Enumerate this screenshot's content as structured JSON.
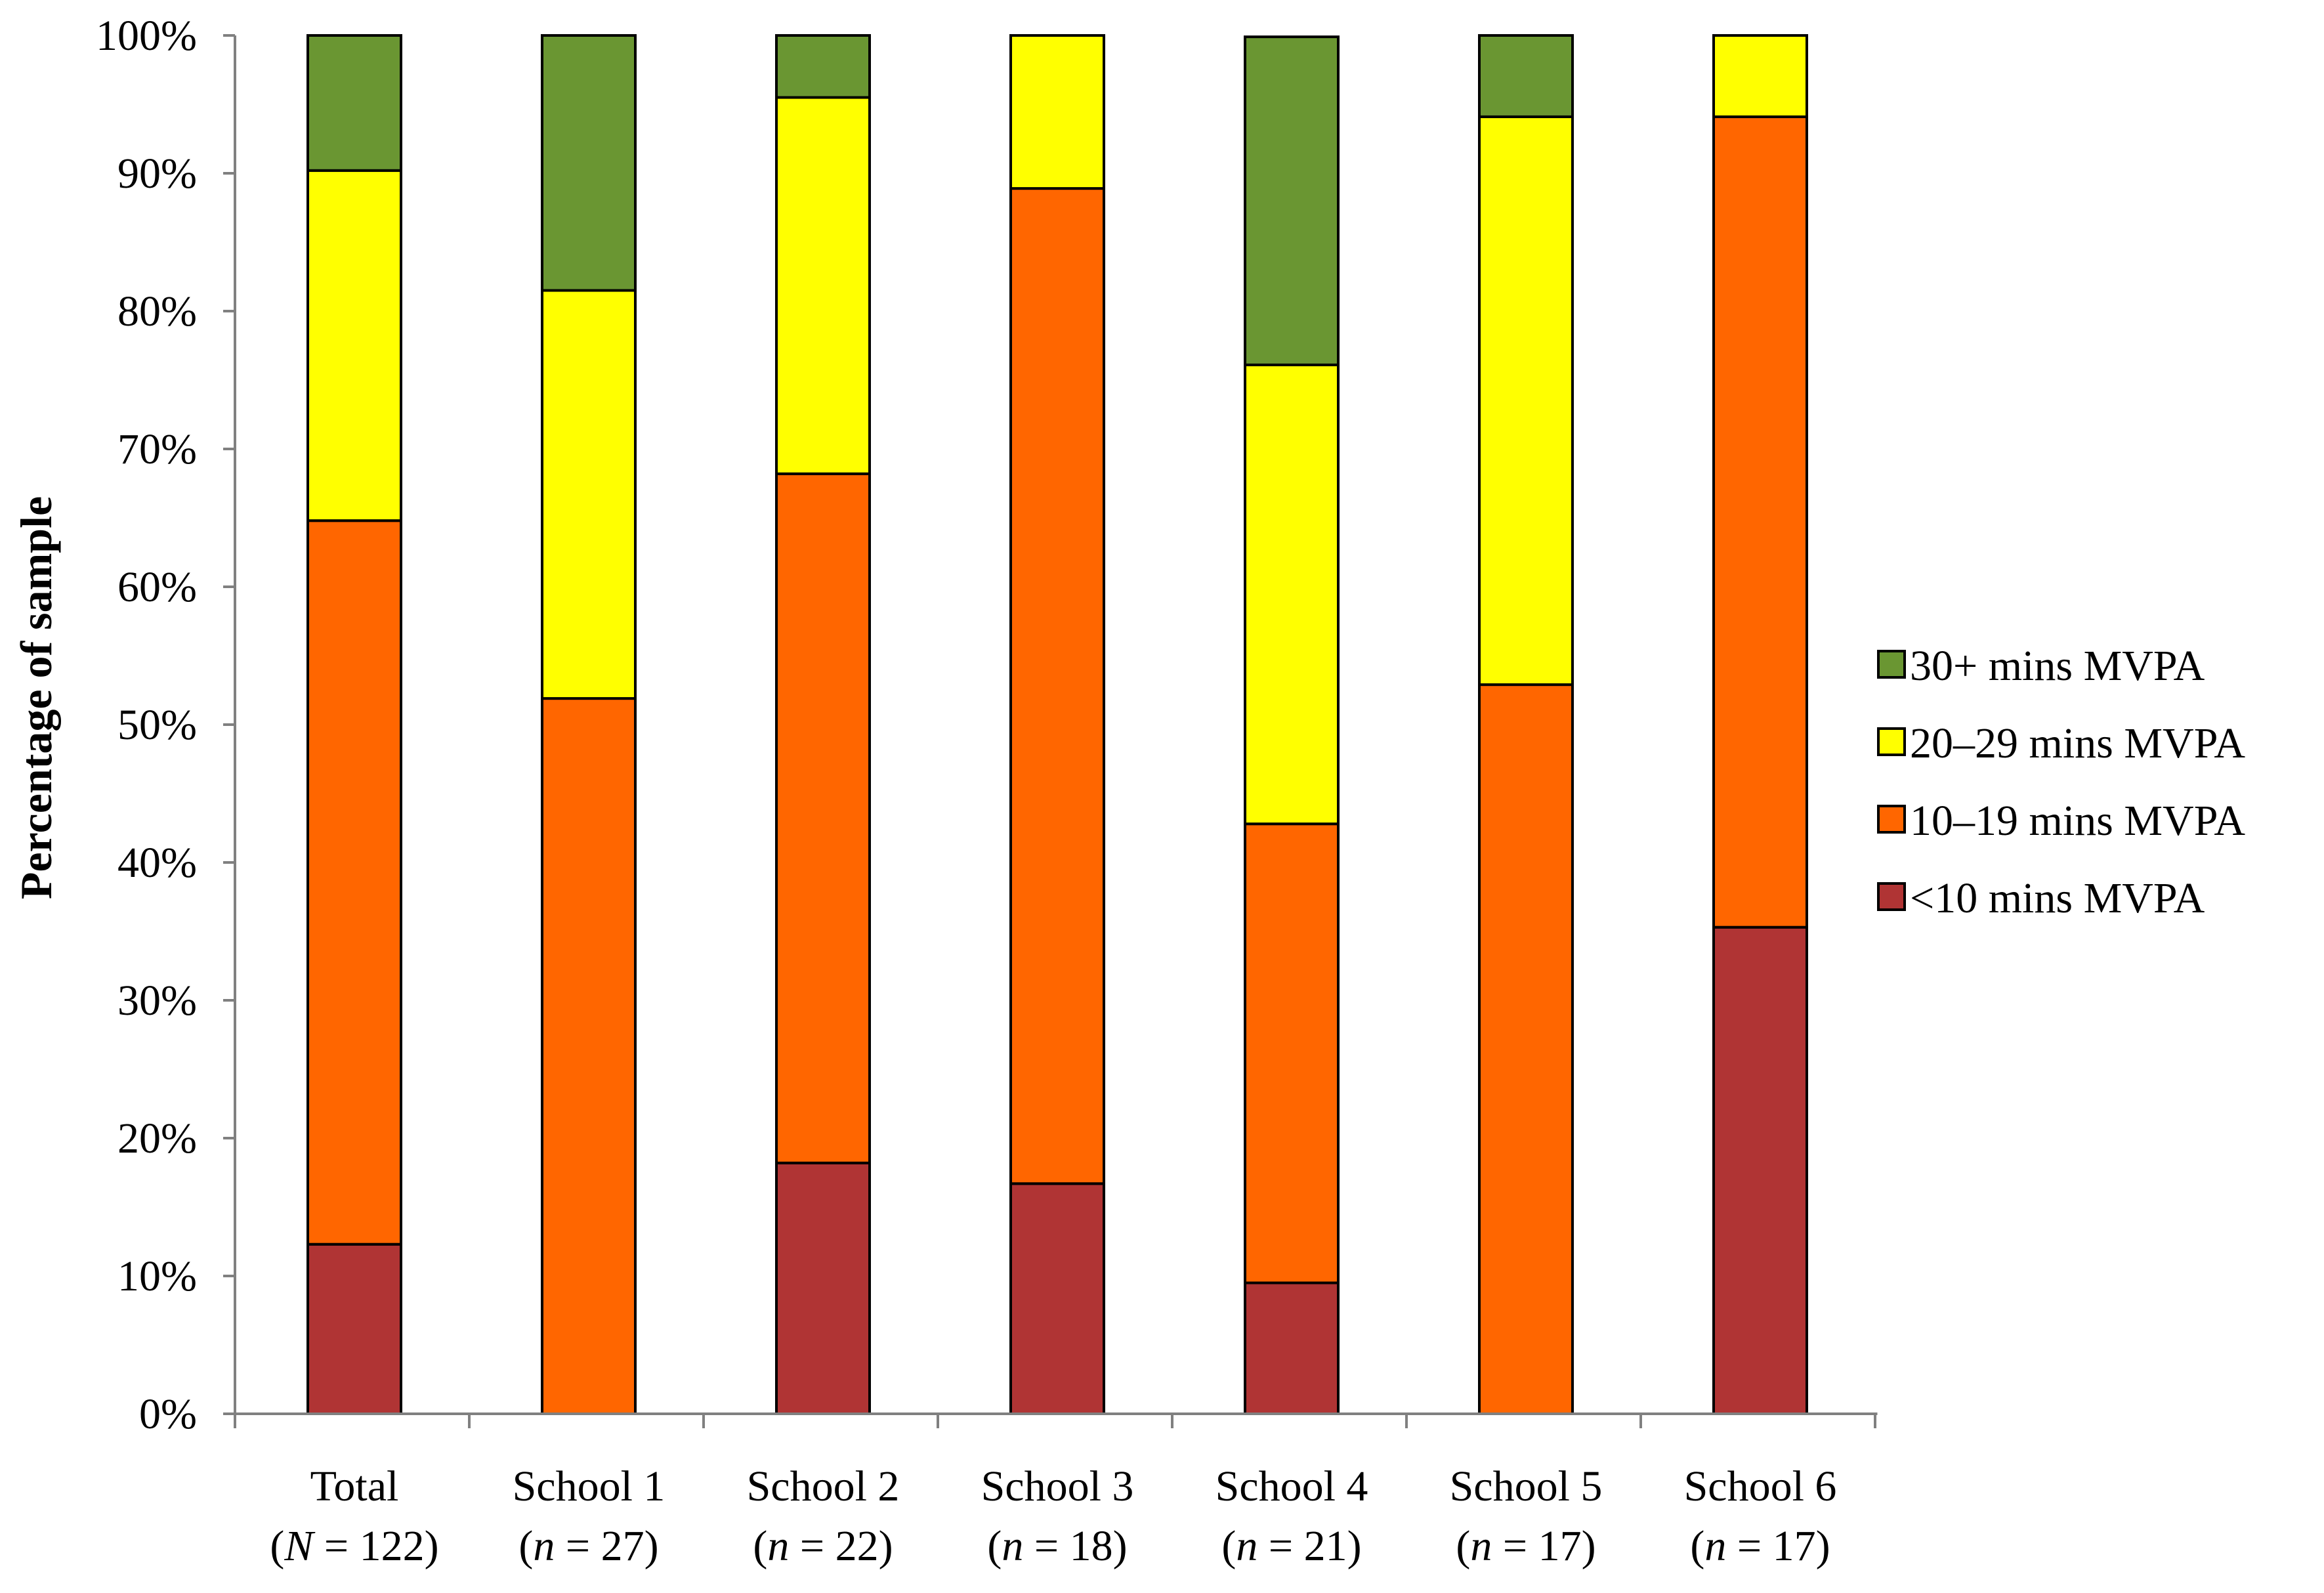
{
  "chart_data": {
    "type": "bar",
    "stacked": true,
    "title": "",
    "xlabel": "",
    "ylabel": "Percentage of sample",
    "ylim": [
      0,
      100
    ],
    "yticks": [
      "0%",
      "10%",
      "20%",
      "30%",
      "40%",
      "50%",
      "60%",
      "70%",
      "80%",
      "90%",
      "100%"
    ],
    "categories": [
      {
        "name": "Total",
        "n_prefix": "(",
        "n_symbol": "N",
        "n_suffix": " = 122)"
      },
      {
        "name": "School 1",
        "n_prefix": "(",
        "n_symbol": "n",
        "n_suffix": " = 27)"
      },
      {
        "name": "School 2",
        "n_prefix": "(",
        "n_symbol": "n",
        "n_suffix": " = 22)"
      },
      {
        "name": "School 3",
        "n_prefix": "(",
        "n_symbol": "n",
        "n_suffix": " = 18)"
      },
      {
        "name": "School 4",
        "n_prefix": "(",
        "n_symbol": "n",
        "n_suffix": " = 21)"
      },
      {
        "name": "School 5",
        "n_prefix": "(",
        "n_symbol": "n",
        "n_suffix": " = 17)"
      },
      {
        "name": "School 6",
        "n_prefix": "(",
        "n_symbol": "n",
        "n_suffix": " = 17)"
      }
    ],
    "series": [
      {
        "name": "<10 mins MVPA",
        "color": "#B03434",
        "values": [
          12.3,
          0,
          18.2,
          16.7,
          9.5,
          0,
          35.3
        ]
      },
      {
        "name": "10–19 mins MVPA",
        "color": "#FF6600",
        "values": [
          52.5,
          51.9,
          50.0,
          72.2,
          33.3,
          52.9,
          58.8
        ]
      },
      {
        "name": "20–29 mins MVPA",
        "color": "#FFFF00",
        "values": [
          25.4,
          29.6,
          27.3,
          11.1,
          33.3,
          41.2,
          5.9
        ]
      },
      {
        "name": "30+ mins MVPA",
        "color": "#6A9632",
        "values": [
          9.8,
          18.5,
          4.5,
          0,
          23.8,
          5.9,
          0
        ]
      }
    ],
    "legend": {
      "position": "right",
      "order": [
        "30+ mins MVPA",
        "20–29 mins MVPA",
        "10–19 mins MVPA",
        "<10 mins MVPA"
      ]
    }
  }
}
